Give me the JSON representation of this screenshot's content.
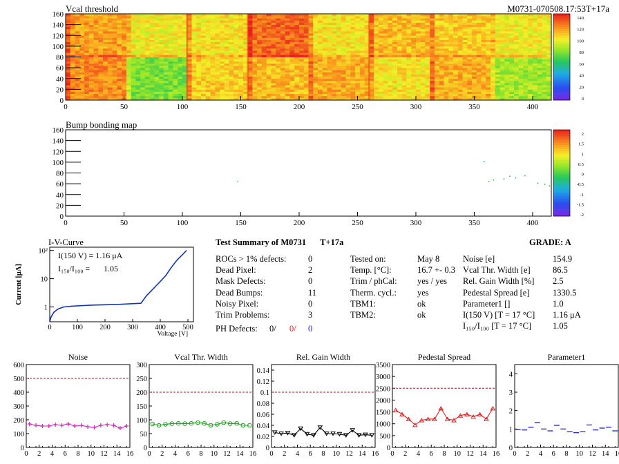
{
  "header": {
    "module_id": "M0731-070508.17:53T+17a"
  },
  "maps": [
    {
      "title": "Vcal threshold",
      "x_ticks": [
        0,
        50,
        100,
        150,
        200,
        250,
        300,
        350,
        400
      ],
      "y_ticks": [
        0,
        20,
        40,
        60,
        80,
        100,
        120,
        140,
        160
      ],
      "z_ticks": [
        "140",
        "120",
        "100",
        "80",
        "60",
        "40",
        "20",
        "0"
      ],
      "xlim": [
        0,
        416
      ],
      "ylim": [
        0,
        160
      ],
      "zlim": [
        0,
        150
      ]
    },
    {
      "title": "Bump bonding map",
      "x_ticks": [
        0,
        50,
        100,
        150,
        200,
        250,
        300,
        350,
        400
      ],
      "y_ticks": [
        0,
        20,
        40,
        60,
        80,
        100,
        120,
        140,
        160
      ],
      "z_ticks": [
        "2",
        "1.5",
        "1",
        "0.5",
        "0",
        "-0.5",
        "-1",
        "-1.5",
        "-2"
      ],
      "xlim": [
        0,
        416
      ],
      "ylim": [
        0,
        160
      ],
      "zlim": [
        -2,
        2
      ],
      "points": [
        [
          147,
          65
        ],
        [
          358,
          102
        ],
        [
          362,
          65
        ],
        [
          366,
          68
        ],
        [
          375,
          70
        ],
        [
          380,
          75
        ],
        [
          385,
          72
        ],
        [
          393,
          76
        ],
        [
          404,
          62
        ],
        [
          410,
          60
        ],
        [
          414,
          57
        ]
      ]
    }
  ],
  "iv": {
    "title": "I-V-Curve",
    "ylabel": "Current [μA]",
    "xlabel": "Voltage [V]",
    "x_ticks": [
      0,
      100,
      200,
      300,
      400,
      500
    ],
    "y_ticks": [
      "1",
      "10",
      "10²"
    ],
    "annotation1": "I(150 V) = 1.16 μA",
    "annotation2_lhs": "I₁₅₀/I₁₀₀ =",
    "annotation2_rhs": "1.05",
    "xlim": [
      0,
      520
    ],
    "ylim_log": [
      0.3,
      130
    ],
    "points": [
      [
        0,
        0.31
      ],
      [
        5,
        0.45
      ],
      [
        15,
        0.65
      ],
      [
        30,
        0.85
      ],
      [
        50,
        1.0
      ],
      [
        80,
        1.07
      ],
      [
        150,
        1.16
      ],
      [
        250,
        1.24
      ],
      [
        330,
        1.35
      ],
      [
        350,
        2.5
      ],
      [
        380,
        5
      ],
      [
        400,
        8
      ],
      [
        420,
        13
      ],
      [
        440,
        25
      ],
      [
        460,
        45
      ],
      [
        480,
        70
      ],
      [
        495,
        100
      ]
    ]
  },
  "summary": {
    "title": "Test Summary of M0731",
    "tag": "T+17a",
    "grade_label": "GRADE:",
    "grade": "A",
    "col1": [
      {
        "label": "ROCs > 1% defects:",
        "value": "0"
      },
      {
        "label": "Dead Pixel:",
        "value": "2"
      },
      {
        "label": "Mask Defects:",
        "value": "0"
      },
      {
        "label": "Dead Bumps:",
        "value": "11"
      },
      {
        "label": "Noisy Pixel:",
        "value": "0"
      },
      {
        "label": "Trim Problems:",
        "value": "3"
      }
    ],
    "ph_label": "PH Defects:",
    "ph_values": [
      "0/",
      "0/",
      "0"
    ],
    "ph_colors": [
      "#000000",
      "#e8201a",
      "#2020d0"
    ],
    "col2": [
      {
        "label": "Tested on:",
        "value": "May 8"
      },
      {
        "label": "Temp. [°C]:",
        "value": "16.7 +- 0.3"
      },
      {
        "label": "Trim / phCal:",
        "value": "yes / yes"
      },
      {
        "label": "Therm. cycl.:",
        "value": "yes"
      },
      {
        "label": "TBM1:",
        "value": "ok"
      },
      {
        "label": "TBM2:",
        "value": "ok"
      }
    ],
    "col3": [
      {
        "label": "Noise [e]",
        "value": "154.9"
      },
      {
        "label": "Vcal Thr. Width [e]",
        "value": "86.5"
      },
      {
        "label": "Rel. Gain Width [%]",
        "value": "2.5"
      },
      {
        "label": "Pedestal Spread [e]",
        "value": "1330.5"
      },
      {
        "label": "Parameter1 []",
        "value": "1.0"
      },
      {
        "label": "I(150 V) [T = 17 °C]",
        "value": "1.16 μA"
      },
      {
        "label": "I₁₅₀/I₁₀₀ [T = 17 °C]",
        "value": "1.05"
      }
    ]
  },
  "chart_data": [
    {
      "type": "line",
      "title": "Noise",
      "color": "#d020c0",
      "marker": "cross",
      "x": [
        0,
        1,
        2,
        3,
        4,
        5,
        6,
        7,
        8,
        9,
        10,
        11,
        12,
        13,
        14,
        15
      ],
      "values": [
        170,
        160,
        155,
        155,
        165,
        160,
        170,
        155,
        160,
        150,
        145,
        160,
        165,
        160,
        140,
        155
      ],
      "ylim": [
        0,
        600
      ],
      "limit": 500,
      "y_ticks": [
        0,
        100,
        200,
        300,
        400,
        500,
        600
      ],
      "x_ticks": [
        0,
        2,
        4,
        6,
        8,
        10,
        12,
        14,
        16
      ]
    },
    {
      "type": "line",
      "title": "Vcal Thr. Width",
      "color": "#20a020",
      "marker": "circle",
      "x": [
        0,
        1,
        2,
        3,
        4,
        5,
        6,
        7,
        8,
        9,
        10,
        11,
        12,
        13,
        14,
        15
      ],
      "values": [
        85,
        80,
        84,
        86,
        87,
        86,
        87,
        90,
        87,
        80,
        84,
        90,
        86,
        87,
        80,
        80
      ],
      "ylim": [
        0,
        300
      ],
      "limit": 200,
      "y_ticks": [
        0,
        50,
        100,
        150,
        200,
        250,
        300
      ],
      "x_ticks": [
        0,
        2,
        4,
        6,
        8,
        10,
        12,
        14,
        16
      ]
    },
    {
      "type": "line",
      "title": "Rel. Gain Width",
      "color": "#000000",
      "marker": "triangle-down",
      "x": [
        0,
        1,
        2,
        3,
        4,
        5,
        6,
        7,
        8,
        9,
        10,
        11,
        12,
        13,
        14,
        15
      ],
      "values": [
        0.027,
        0.025,
        0.026,
        0.022,
        0.034,
        0.024,
        0.022,
        0.036,
        0.025,
        0.025,
        0.024,
        0.022,
        0.031,
        0.022,
        0.023,
        0.022
      ],
      "ylim": [
        0,
        0.15
      ],
      "limit": 0.1,
      "y_ticks": [
        0,
        0.02,
        0.04,
        0.06,
        0.08,
        0.1,
        0.12,
        0.14
      ],
      "x_ticks": [
        0,
        2,
        4,
        6,
        8,
        10,
        12,
        14,
        16
      ]
    },
    {
      "type": "line",
      "title": "Pedestal Spread",
      "color": "#e02020",
      "marker": "triangle-up",
      "x": [
        0,
        1,
        2,
        3,
        4,
        5,
        6,
        7,
        8,
        9,
        10,
        11,
        12,
        13,
        14,
        15
      ],
      "values": [
        1580,
        1400,
        1200,
        950,
        1150,
        1200,
        1200,
        1650,
        1200,
        1150,
        1350,
        1400,
        1300,
        1400,
        1200,
        1650
      ],
      "ylim": [
        0,
        3500
      ],
      "limit": 2500,
      "y_ticks": [
        0,
        500,
        1000,
        1500,
        2000,
        2500,
        3000,
        3500
      ],
      "x_ticks": [
        0,
        2,
        4,
        6,
        8,
        10,
        12,
        14,
        16
      ]
    },
    {
      "type": "scatter",
      "title": "Parameter1",
      "color": "#2020d0",
      "marker": "hbar",
      "x": [
        0,
        1,
        2,
        3,
        4,
        5,
        6,
        7,
        8,
        9,
        10,
        11,
        12,
        13,
        14,
        15
      ],
      "values": [
        0.98,
        0.95,
        1.1,
        1.35,
        1.0,
        0.9,
        1.2,
        1.0,
        0.85,
        0.8,
        0.85,
        1.22,
        0.95,
        1.05,
        1.1,
        0.9
      ],
      "ylim": [
        0,
        4.5
      ],
      "limit": null,
      "y_ticks": [
        0,
        1,
        2,
        3,
        4
      ],
      "x_ticks": [
        0,
        2,
        4,
        6,
        8,
        10,
        12,
        14,
        16
      ]
    }
  ]
}
